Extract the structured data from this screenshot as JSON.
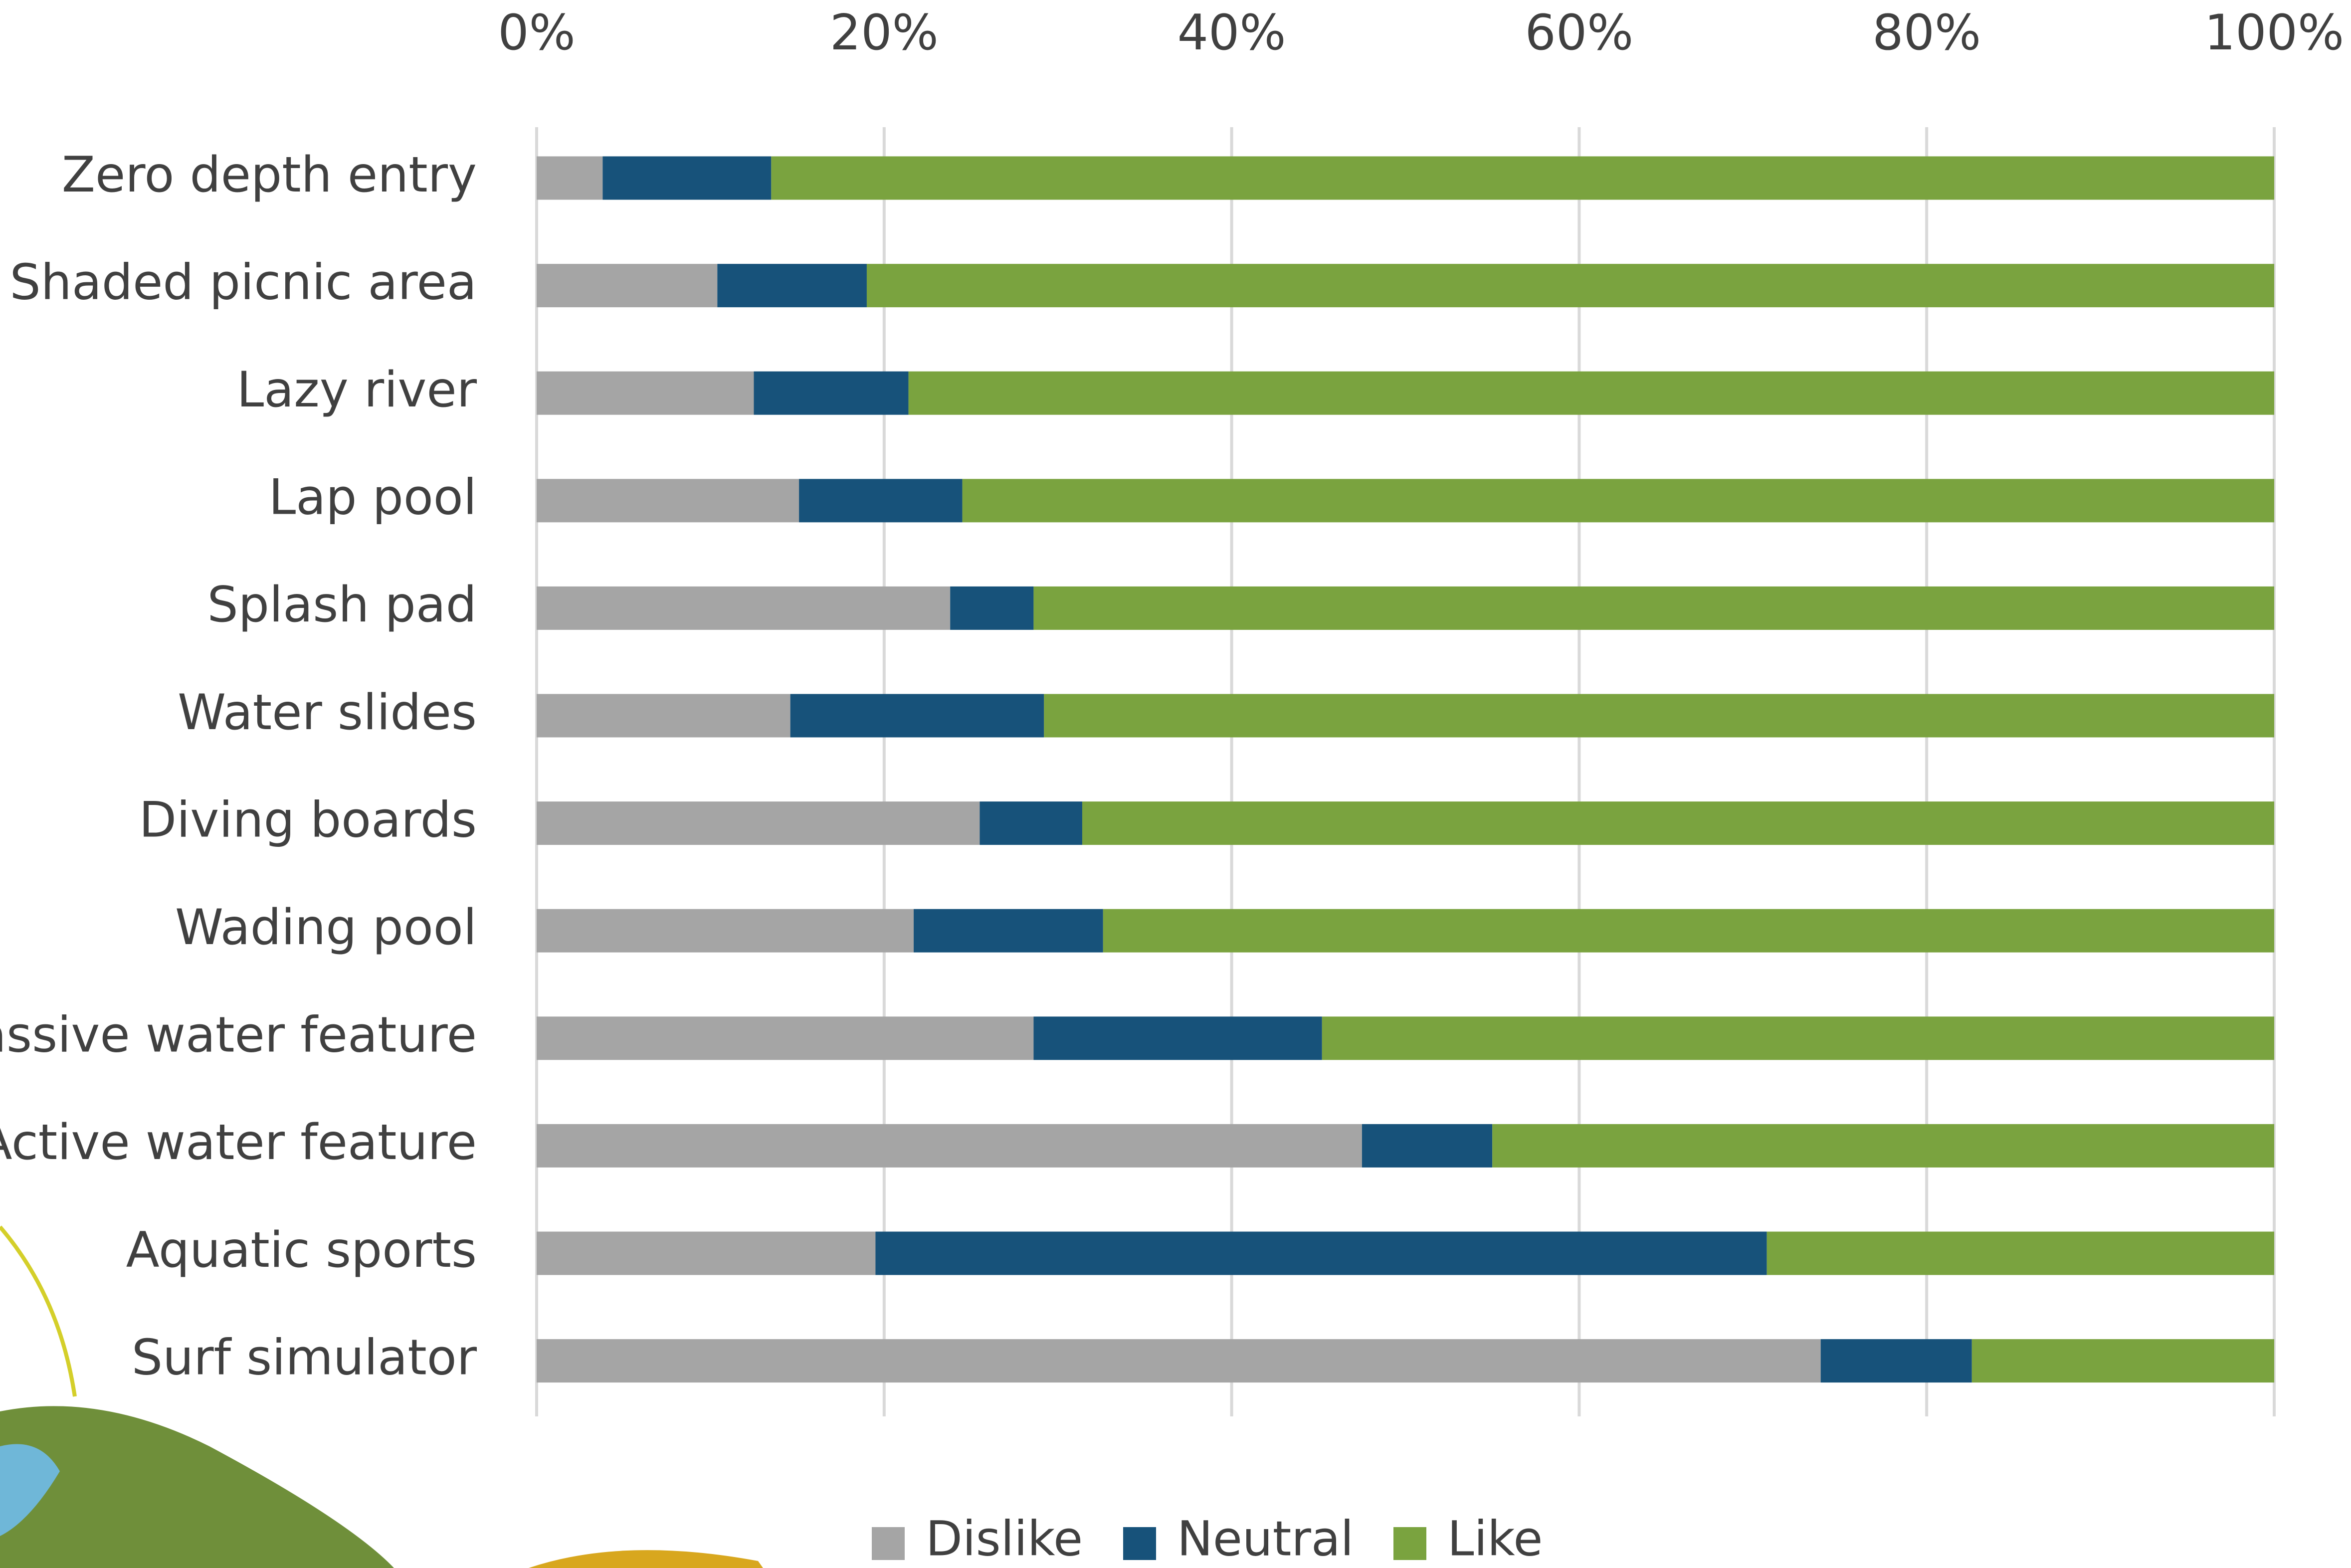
{
  "chart_data": {
    "type": "bar",
    "orientation": "horizontal",
    "stacked": true,
    "categories": [
      "Zero depth entry",
      "Shaded picnic area",
      "Lazy river",
      "Lap pool",
      "Splash pad",
      "Water slides",
      "Diving boards",
      "Wading pool",
      "Passive water feature",
      "Active water feature",
      "Aquatic sports",
      "Surf simulator"
    ],
    "series": [
      {
        "name": "Dislike",
        "color": "#a5a5a5",
        "values": [
          3.8,
          10.4,
          12.5,
          15.1,
          23.8,
          14.6,
          25.5,
          21.7,
          28.6,
          47.5,
          19.5,
          73.9
        ]
      },
      {
        "name": "Neutral",
        "color": "#17527a",
        "values": [
          9.7,
          8.6,
          8.9,
          9.4,
          4.8,
          14.6,
          5.9,
          10.9,
          16.6,
          7.5,
          51.3,
          8.7
        ]
      },
      {
        "name": "Like",
        "color": "#7aa33f",
        "values": [
          86.5,
          81.0,
          78.6,
          75.5,
          71.4,
          70.8,
          68.6,
          67.4,
          54.8,
          45.0,
          29.2,
          17.4
        ]
      }
    ],
    "xlim": [
      0,
      100
    ],
    "xticks": [
      {
        "value": 0,
        "label": "0%"
      },
      {
        "value": 20,
        "label": "20%"
      },
      {
        "value": 40,
        "label": "40%"
      },
      {
        "value": 60,
        "label": "60%"
      },
      {
        "value": 80,
        "label": "80%"
      },
      {
        "value": 100,
        "label": "100%"
      }
    ],
    "grid": true,
    "legend": "bottom"
  }
}
